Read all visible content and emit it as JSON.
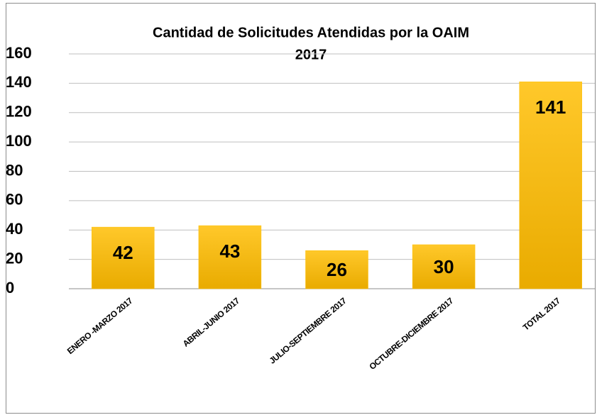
{
  "chart_data": {
    "type": "bar",
    "title": "Cantidad de Solicitudes Atendidas por la OAIM",
    "subtitle": "2017",
    "categories": [
      "ENERO -MARZO 2017",
      "ABRIL-JUNIO 2017",
      "JULIO-SEPTIEMBRE 2017",
      "OCTUBRE-DICIEMBRE 2017",
      "TOTAL 2017"
    ],
    "values": [
      42,
      43,
      26,
      30,
      141
    ],
    "color": "#ffc000",
    "ylim": [
      0,
      160
    ],
    "yticks": [
      0,
      20,
      40,
      60,
      80,
      100,
      120,
      140,
      160
    ],
    "grid": true
  }
}
